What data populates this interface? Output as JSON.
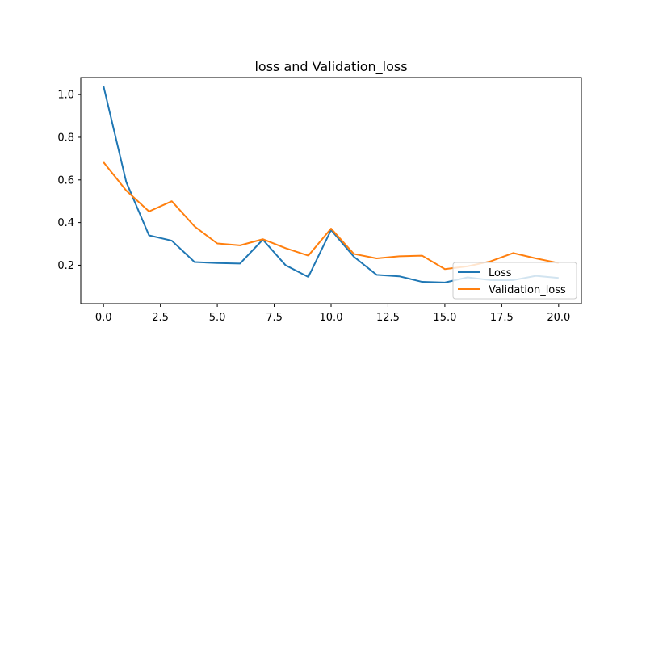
{
  "chart_data": {
    "type": "line",
    "title": "loss and Validation_loss",
    "xlabel": "",
    "ylabel": "",
    "xlim": [
      -1,
      21
    ],
    "ylim": [
      0.02,
      1.08
    ],
    "xticks": [
      0.0,
      2.5,
      5.0,
      7.5,
      10.0,
      12.5,
      15.0,
      17.5,
      20.0
    ],
    "xtick_labels": [
      "0.0",
      "2.5",
      "5.0",
      "7.5",
      "10.0",
      "12.5",
      "15.0",
      "17.5",
      "20.0"
    ],
    "yticks": [
      0.2,
      0.4,
      0.6,
      0.8,
      1.0
    ],
    "ytick_labels": [
      "0.2",
      "0.4",
      "0.6",
      "0.8",
      "1.0"
    ],
    "grid": false,
    "legend_position": "lower right",
    "x": [
      0,
      1,
      2,
      3,
      4,
      5,
      6,
      7,
      8,
      9,
      10,
      11,
      12,
      13,
      14,
      15,
      16,
      17,
      18,
      19,
      20
    ],
    "series": [
      {
        "name": "Loss",
        "color": "#1f77b4",
        "values": [
          1.04,
          0.59,
          0.34,
          0.315,
          0.215,
          0.21,
          0.208,
          0.32,
          0.2,
          0.145,
          0.365,
          0.24,
          0.155,
          0.148,
          0.122,
          0.119,
          0.143,
          0.13,
          0.13,
          0.15,
          0.14
        ]
      },
      {
        "name": "Validation_loss",
        "color": "#ff7f0e",
        "values": [
          0.683,
          0.55,
          0.452,
          0.5,
          0.382,
          0.302,
          0.293,
          0.322,
          0.28,
          0.245,
          0.372,
          0.253,
          0.232,
          0.242,
          0.245,
          0.182,
          0.195,
          0.218,
          0.257,
          0.232,
          0.21
        ]
      }
    ]
  }
}
